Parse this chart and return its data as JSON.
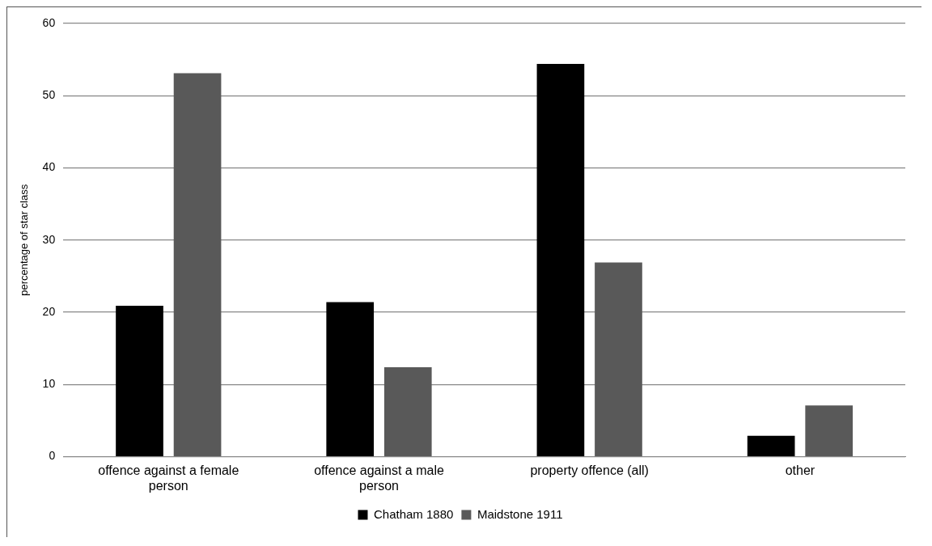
{
  "chart_data": {
    "type": "bar",
    "ylabel": "percentage of star class",
    "categories": [
      "offence against a female person",
      "offence against a male person",
      "property offence (all)",
      "other"
    ],
    "series": [
      {
        "name": "Chatham 1880",
        "color": "#000000",
        "values": [
          20.9,
          21.4,
          54.4,
          2.9
        ]
      },
      {
        "name": "Maidstone 1911",
        "color": "#595959",
        "values": [
          53.1,
          12.4,
          26.9,
          7.1
        ]
      }
    ],
    "ylim": [
      0,
      60
    ],
    "yticks": [
      0,
      10,
      20,
      30,
      40,
      50,
      60
    ],
    "grid": "y",
    "legend": "bottom"
  }
}
